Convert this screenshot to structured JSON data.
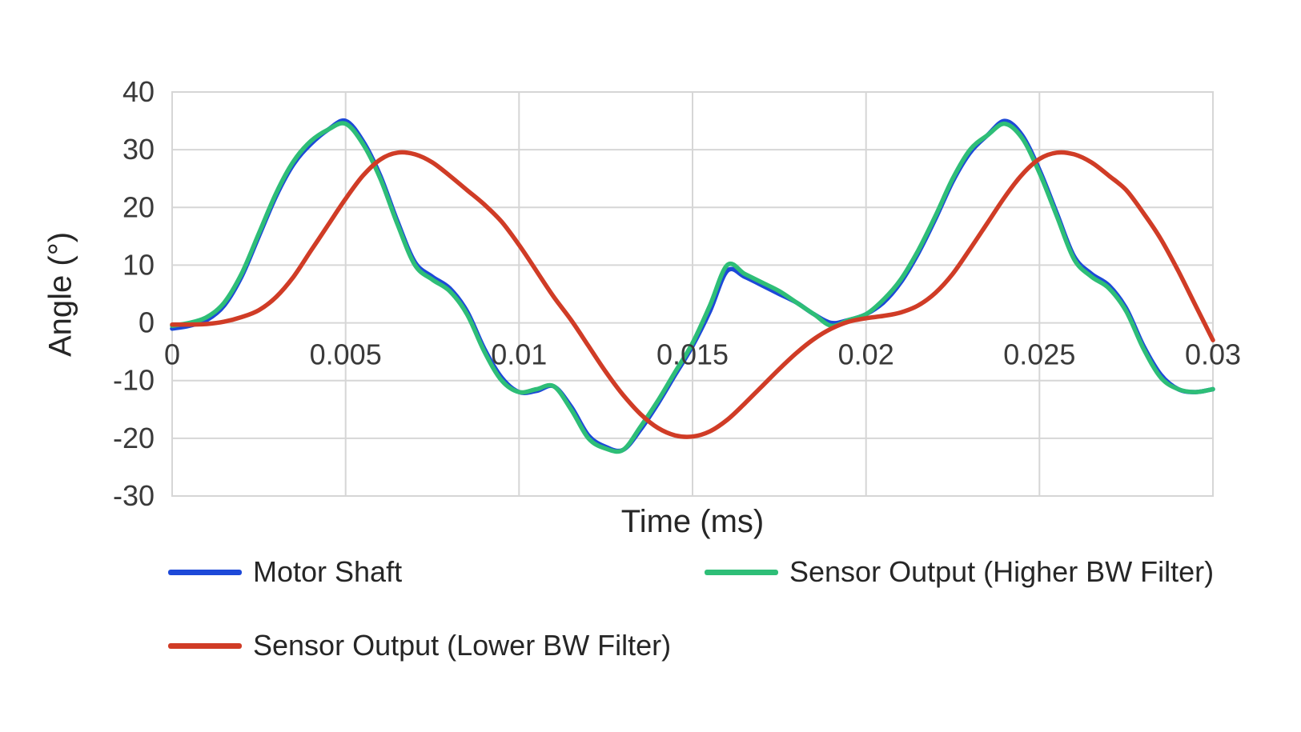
{
  "chart_data": {
    "type": "line",
    "title": "",
    "xlabel": "Time (ms)",
    "ylabel": "Angle (°)",
    "xlim": [
      0,
      0.03
    ],
    "ylim": [
      -30,
      40
    ],
    "grid": true,
    "grid_color": "#d6d6d6",
    "text_color": "#3a3a3a",
    "legend_position": "bottom",
    "x_tick_values": [
      0,
      0.005,
      0.01,
      0.015,
      0.02,
      0.025,
      0.03
    ],
    "x_tick_labels": [
      "0",
      "0.005",
      "0.01",
      "0.015",
      "0.02",
      "0.025",
      "0.03"
    ],
    "y_tick_values": [
      -30,
      -20,
      -10,
      0,
      10,
      20,
      30,
      40
    ],
    "y_tick_labels": [
      "-30",
      "-20",
      "-10",
      "0",
      "10",
      "20",
      "30",
      "40"
    ],
    "x": [
      0,
      0.0005,
      0.001,
      0.0015,
      0.002,
      0.0025,
      0.003,
      0.0035,
      0.004,
      0.0045,
      0.005,
      0.0055,
      0.006,
      0.0065,
      0.007,
      0.0075,
      0.008,
      0.0085,
      0.009,
      0.0095,
      0.01,
      0.0105,
      0.011,
      0.0115,
      0.012,
      0.0125,
      0.013,
      0.0135,
      0.014,
      0.0145,
      0.015,
      0.0155,
      0.016,
      0.0165,
      0.017,
      0.0175,
      0.018,
      0.0185,
      0.019,
      0.0195,
      0.02,
      0.0205,
      0.021,
      0.0215,
      0.022,
      0.0225,
      0.023,
      0.0235,
      0.024,
      0.0245,
      0.025,
      0.0255,
      0.026,
      0.0265,
      0.027,
      0.0275,
      0.028,
      0.0285,
      0.029,
      0.0295,
      0.03
    ],
    "series": [
      {
        "id": "motor-shaft",
        "name": "Motor Shaft",
        "color": "#1d49d8",
        "values": [
          -1,
          -0.5,
          0.5,
          3,
          8,
          15,
          22,
          27.5,
          31,
          33.5,
          35,
          31.5,
          25.5,
          17.5,
          10.5,
          8,
          6,
          2,
          -4.5,
          -9.5,
          -12,
          -11.8,
          -11,
          -14.5,
          -19.5,
          -21.5,
          -22,
          -18.5,
          -14,
          -9,
          -4,
          2,
          9,
          8,
          6.5,
          5,
          3.5,
          1.5,
          0,
          0.5,
          1.5,
          3.5,
          7,
          12,
          18,
          24.5,
          29.5,
          32.5,
          35,
          32.5,
          26.5,
          19,
          11.5,
          8.5,
          6.5,
          2.5,
          -4,
          -9,
          -11.5,
          -12,
          -11.5
        ]
      },
      {
        "id": "sensor-higher-bw",
        "name": "Sensor Output (Higher BW Filter)",
        "color": "#2ebe77",
        "values": [
          -0.5,
          0,
          1,
          3.5,
          8.5,
          15.5,
          22.5,
          28,
          31.5,
          33.5,
          34.5,
          31,
          25,
          17,
          10,
          7.5,
          5.5,
          1.5,
          -5,
          -10,
          -12,
          -11.5,
          -11,
          -15,
          -20,
          -21.8,
          -22,
          -18,
          -13.5,
          -8.5,
          -3.5,
          3,
          10,
          8.5,
          7,
          5.5,
          3.5,
          1.5,
          -0.5,
          0.5,
          1.5,
          4,
          7.5,
          12.5,
          18.5,
          25,
          30,
          32.5,
          34.5,
          32,
          26,
          18.5,
          11,
          8,
          6,
          2,
          -4.5,
          -9.5,
          -11.5,
          -12,
          -11.5
        ]
      },
      {
        "id": "sensor-lower-bw",
        "name": "Sensor Output (Lower BW Filter)",
        "color": "#d03c26",
        "values": [
          -0.3,
          -0.3,
          -0.2,
          0.2,
          1,
          2.2,
          4.5,
          8,
          12.5,
          17,
          21.5,
          25.5,
          28.3,
          29.5,
          29.2,
          27.8,
          25.5,
          23,
          20.5,
          17.5,
          13.5,
          9,
          4.5,
          0.5,
          -4,
          -8.5,
          -12.5,
          -15.8,
          -18.2,
          -19.5,
          -19.7,
          -18.8,
          -16.8,
          -14,
          -11,
          -8,
          -5.2,
          -2.8,
          -1,
          0.2,
          0.8,
          1.2,
          1.8,
          3,
          5.2,
          8.5,
          12.8,
          17.3,
          21.8,
          25.7,
          28.4,
          29.5,
          29.2,
          27.8,
          25.5,
          23,
          19,
          14.5,
          9,
          3,
          -3
        ]
      }
    ]
  }
}
